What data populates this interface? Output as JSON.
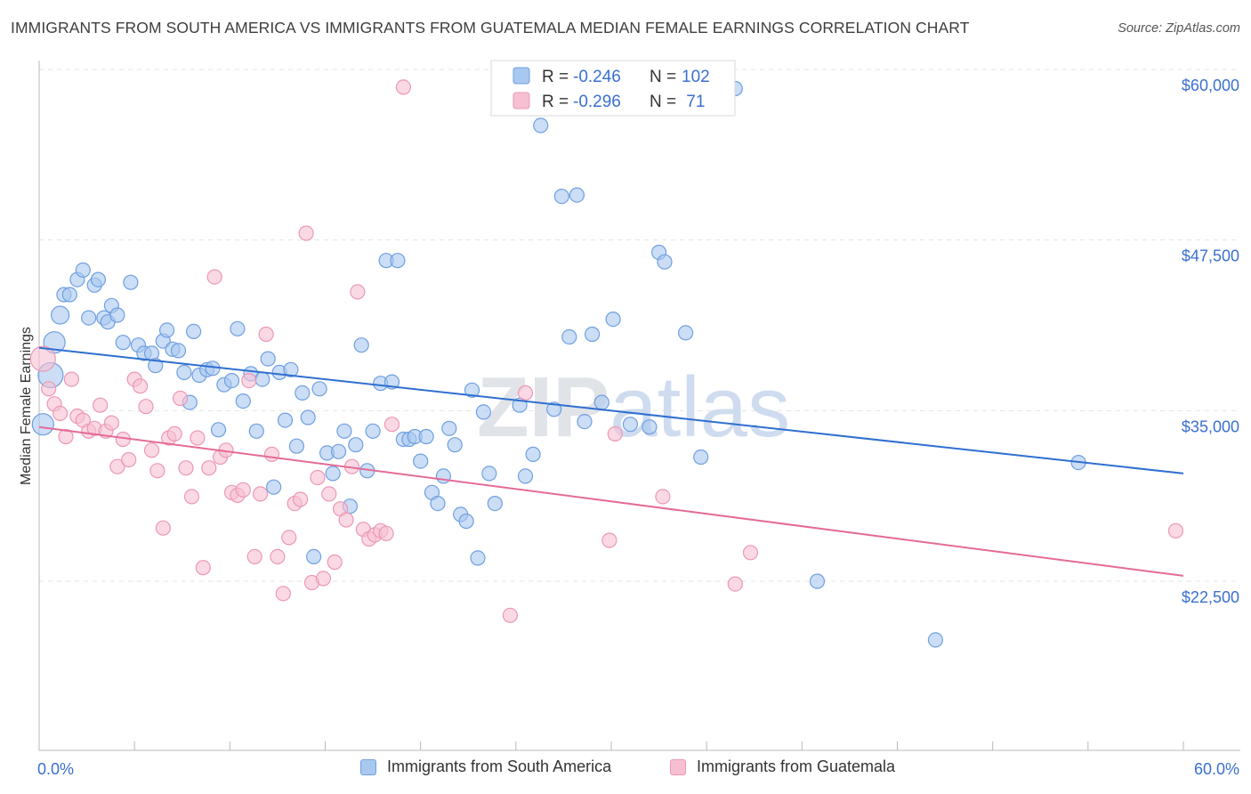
{
  "header": {
    "title": "IMMIGRANTS FROM SOUTH AMERICA VS IMMIGRANTS FROM GUATEMALA MEDIAN FEMALE EARNINGS CORRELATION CHART",
    "source": "Source: ZipAtlas.com"
  },
  "watermark": {
    "bold": "ZIP",
    "light": "atlas"
  },
  "colors": {
    "blue_fill": "#a9c8f0",
    "blue_stroke": "#6f9fe0",
    "blue_line": "#2f6fd0",
    "pink_fill": "#f7bfd2",
    "pink_stroke": "#ec97b5",
    "pink_line": "#e46b97",
    "value_text": "#3a6fd0",
    "grid": "#e3e3e3"
  },
  "legend_top": {
    "rows": [
      {
        "r_label": "R = ",
        "r_value": "-0.246",
        "n_label": "N = ",
        "n_value": "102"
      },
      {
        "r_label": "R = ",
        "r_value": "-0.296",
        "n_label": "N = ",
        "n_value": " 71"
      }
    ]
  },
  "legend_bottom": [
    "Immigrants from South America",
    "Immigrants from Guatemala"
  ],
  "chart_data": {
    "type": "scatter",
    "title": "IMMIGRANTS FROM SOUTH AMERICA VS IMMIGRANTS FROM GUATEMALA MEDIAN FEMALE EARNINGS CORRELATION CHART",
    "ylabel": "Median Female Earnings",
    "xlabel": "",
    "xlim": [
      0,
      60
    ],
    "ylim": [
      13000,
      61500
    ],
    "x_tick_labels": [
      {
        "value": 0,
        "label": "0.0%"
      },
      {
        "value": 60,
        "label": "60.0%"
      }
    ],
    "y_ticks": [
      {
        "value": 22500,
        "label": "$22,500"
      },
      {
        "value": 35000,
        "label": "$35,000"
      },
      {
        "value": 47500,
        "label": "$47,500"
      },
      {
        "value": 60000,
        "label": "$60,000"
      }
    ],
    "grid": true,
    "series": [
      {
        "name": "Immigrants from South America",
        "color": "#6f9fe0",
        "trend": {
          "x": [
            0,
            60
          ],
          "y": [
            39600,
            30400
          ]
        },
        "points": [
          [
            0.2,
            34000,
            4
          ],
          [
            0.6,
            37600,
            6
          ],
          [
            0.8,
            40000,
            4
          ],
          [
            1.1,
            42000,
            3
          ],
          [
            1.3,
            43500,
            2
          ],
          [
            1.6,
            43500,
            2
          ],
          [
            2.0,
            44600,
            2
          ],
          [
            2.3,
            45300,
            2
          ],
          [
            2.6,
            41800,
            2
          ],
          [
            2.9,
            44200,
            2
          ],
          [
            3.1,
            44600,
            2
          ],
          [
            3.4,
            41800,
            2
          ],
          [
            3.6,
            41500,
            2
          ],
          [
            3.8,
            42700,
            2
          ],
          [
            4.1,
            42000,
            2
          ],
          [
            4.4,
            40000,
            2
          ],
          [
            4.8,
            44400,
            2
          ],
          [
            5.2,
            39800,
            2
          ],
          [
            5.5,
            39200,
            2
          ],
          [
            5.9,
            39200,
            2
          ],
          [
            6.1,
            38300,
            2
          ],
          [
            6.5,
            40100,
            2
          ],
          [
            6.7,
            40900,
            2
          ],
          [
            7.0,
            39500,
            2
          ],
          [
            7.3,
            39400,
            2
          ],
          [
            7.6,
            37800,
            2
          ],
          [
            7.9,
            35600,
            2
          ],
          [
            8.1,
            40800,
            2
          ],
          [
            8.4,
            37600,
            2
          ],
          [
            8.8,
            38000,
            2
          ],
          [
            9.1,
            38100,
            2
          ],
          [
            9.4,
            33600,
            2
          ],
          [
            9.7,
            36900,
            2
          ],
          [
            10.1,
            37200,
            2
          ],
          [
            10.4,
            41000,
            2
          ],
          [
            10.7,
            35700,
            2
          ],
          [
            11.1,
            37700,
            2
          ],
          [
            11.4,
            33500,
            2
          ],
          [
            11.7,
            37300,
            2
          ],
          [
            12.0,
            38800,
            2
          ],
          [
            12.3,
            29400,
            2
          ],
          [
            12.6,
            37800,
            2
          ],
          [
            12.9,
            34300,
            2
          ],
          [
            13.2,
            38000,
            2
          ],
          [
            13.5,
            32400,
            2
          ],
          [
            13.8,
            36300,
            2
          ],
          [
            14.1,
            34500,
            2
          ],
          [
            14.4,
            24300,
            2
          ],
          [
            14.7,
            36600,
            2
          ],
          [
            15.1,
            31900,
            2
          ],
          [
            15.4,
            30400,
            2
          ],
          [
            15.7,
            32000,
            2
          ],
          [
            16.0,
            33500,
            2
          ],
          [
            16.3,
            28000,
            2
          ],
          [
            16.6,
            32500,
            2
          ],
          [
            16.9,
            39800,
            2
          ],
          [
            17.2,
            30600,
            2
          ],
          [
            17.5,
            33500,
            2
          ],
          [
            17.9,
            37000,
            2
          ],
          [
            18.2,
            46000,
            2
          ],
          [
            18.5,
            37100,
            2
          ],
          [
            18.8,
            46000,
            2
          ],
          [
            19.1,
            32900,
            2
          ],
          [
            19.4,
            32900,
            2
          ],
          [
            19.7,
            33100,
            2
          ],
          [
            20.0,
            31300,
            2
          ],
          [
            20.3,
            33100,
            2
          ],
          [
            20.6,
            29000,
            2
          ],
          [
            20.9,
            28200,
            2
          ],
          [
            21.2,
            30200,
            2
          ],
          [
            21.5,
            33700,
            2
          ],
          [
            21.8,
            32500,
            2
          ],
          [
            22.1,
            27400,
            2
          ],
          [
            22.4,
            26900,
            2
          ],
          [
            22.7,
            36500,
            2
          ],
          [
            23.0,
            24200,
            2
          ],
          [
            23.3,
            34900,
            2
          ],
          [
            23.6,
            30400,
            2
          ],
          [
            23.9,
            28200,
            2
          ],
          [
            24.7,
            57200,
            2
          ],
          [
            25.2,
            35400,
            2
          ],
          [
            25.5,
            30200,
            2
          ],
          [
            25.9,
            31800,
            2
          ],
          [
            26.3,
            55900,
            2
          ],
          [
            27.0,
            35100,
            2
          ],
          [
            27.4,
            50700,
            2
          ],
          [
            27.8,
            40400,
            2
          ],
          [
            28.2,
            50800,
            2
          ],
          [
            28.6,
            34200,
            2
          ],
          [
            29.0,
            40600,
            2
          ],
          [
            29.5,
            35600,
            2
          ],
          [
            30.1,
            41700,
            2
          ],
          [
            31.0,
            34000,
            2
          ],
          [
            32.0,
            33800,
            2
          ],
          [
            32.5,
            46600,
            2
          ],
          [
            32.8,
            45900,
            2
          ],
          [
            33.9,
            40700,
            2
          ],
          [
            34.7,
            31600,
            2
          ],
          [
            36.5,
            58600,
            2
          ],
          [
            40.8,
            22500,
            2
          ],
          [
            47.0,
            18200,
            2
          ],
          [
            54.5,
            31200,
            2
          ]
        ]
      },
      {
        "name": "Immigrants from Guatemala",
        "color": "#ec97b5",
        "trend": {
          "x": [
            0,
            60
          ],
          "y": [
            33800,
            22900
          ]
        },
        "points": [
          [
            0.2,
            38800,
            6
          ],
          [
            0.5,
            36600,
            2
          ],
          [
            0.8,
            35500,
            2
          ],
          [
            1.1,
            34800,
            2
          ],
          [
            1.4,
            33100,
            2
          ],
          [
            1.7,
            37300,
            2
          ],
          [
            2.0,
            34600,
            2
          ],
          [
            2.3,
            34300,
            2
          ],
          [
            2.6,
            33500,
            2
          ],
          [
            2.9,
            33700,
            2
          ],
          [
            3.2,
            35400,
            2
          ],
          [
            3.5,
            33500,
            2
          ],
          [
            3.8,
            34100,
            2
          ],
          [
            4.1,
            30900,
            2
          ],
          [
            4.4,
            32900,
            2
          ],
          [
            4.7,
            31400,
            2
          ],
          [
            5.0,
            37300,
            2
          ],
          [
            5.3,
            36800,
            2
          ],
          [
            5.6,
            35300,
            2
          ],
          [
            5.9,
            32100,
            2
          ],
          [
            6.2,
            30600,
            2
          ],
          [
            6.5,
            26400,
            2
          ],
          [
            6.8,
            33000,
            2
          ],
          [
            7.1,
            33300,
            2
          ],
          [
            7.4,
            35900,
            2
          ],
          [
            7.7,
            30800,
            2
          ],
          [
            8.0,
            28700,
            2
          ],
          [
            8.3,
            33000,
            2
          ],
          [
            8.6,
            23500,
            2
          ],
          [
            8.9,
            30800,
            2
          ],
          [
            9.2,
            44800,
            2
          ],
          [
            9.5,
            31600,
            2
          ],
          [
            9.8,
            32100,
            2
          ],
          [
            10.1,
            29000,
            2
          ],
          [
            10.4,
            28800,
            2
          ],
          [
            10.7,
            29200,
            2
          ],
          [
            11.0,
            37200,
            2
          ],
          [
            11.3,
            24300,
            2
          ],
          [
            11.6,
            28900,
            2
          ],
          [
            11.9,
            40600,
            2
          ],
          [
            12.2,
            31800,
            2
          ],
          [
            12.5,
            24300,
            2
          ],
          [
            12.8,
            21600,
            2
          ],
          [
            13.1,
            25700,
            2
          ],
          [
            13.4,
            28200,
            2
          ],
          [
            13.7,
            28500,
            2
          ],
          [
            14.0,
            48000,
            2
          ],
          [
            14.3,
            22400,
            2
          ],
          [
            14.6,
            30100,
            2
          ],
          [
            14.9,
            22700,
            2
          ],
          [
            15.2,
            28900,
            2
          ],
          [
            15.5,
            23900,
            2
          ],
          [
            15.8,
            27800,
            2
          ],
          [
            16.1,
            27000,
            2
          ],
          [
            16.4,
            30900,
            2
          ],
          [
            16.7,
            43700,
            2
          ],
          [
            17.0,
            26300,
            2
          ],
          [
            17.3,
            25600,
            2
          ],
          [
            17.6,
            25900,
            2
          ],
          [
            17.9,
            26200,
            2
          ],
          [
            18.2,
            26000,
            2
          ],
          [
            18.5,
            34000,
            2
          ],
          [
            19.1,
            58700,
            2
          ],
          [
            24.7,
            20000,
            2
          ],
          [
            25.5,
            36300,
            2
          ],
          [
            29.9,
            25500,
            2
          ],
          [
            30.2,
            33300,
            2
          ],
          [
            32.7,
            28700,
            2
          ],
          [
            36.5,
            22300,
            2
          ],
          [
            37.3,
            24600,
            2
          ],
          [
            59.6,
            26200,
            2
          ]
        ]
      }
    ]
  }
}
